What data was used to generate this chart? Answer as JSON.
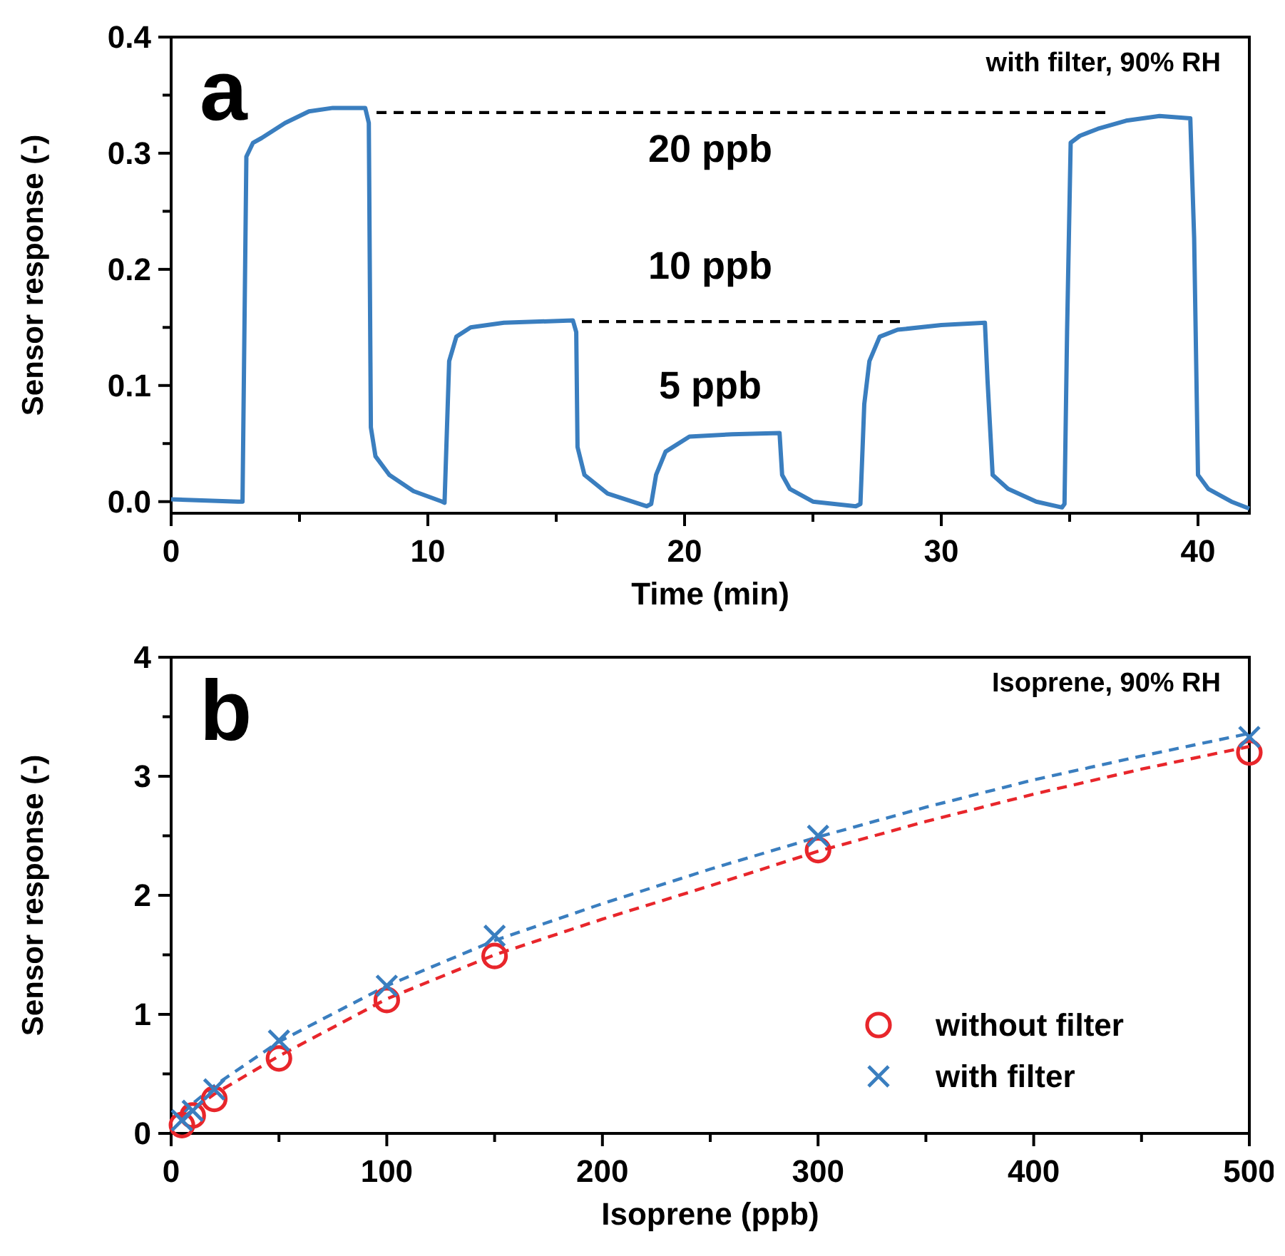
{
  "chart_data": [
    {
      "type": "line",
      "xlabel": "Time (min)",
      "ylabel": "Sensor response (-)",
      "xlim": [
        0,
        42
      ],
      "ylim": [
        -0.01,
        0.4
      ],
      "xticks": [
        0,
        {
          "value": 5,
          "label": null
        },
        10,
        {
          "value": 15,
          "label": null
        },
        20,
        {
          "value": 25,
          "label": null
        },
        30,
        {
          "value": 35,
          "label": null
        },
        40
      ],
      "yticks": [
        {
          "value": 0,
          "label": "0.0"
        },
        {
          "value": 0.05,
          "label": null
        },
        {
          "value": 0.1,
          "label": "0.1"
        },
        {
          "value": 0.15,
          "label": null
        },
        {
          "value": 0.2,
          "label": "0.2"
        },
        {
          "value": 0.25,
          "label": null
        },
        {
          "value": 0.3,
          "label": "0.3"
        },
        {
          "value": 0.35,
          "label": null
        },
        {
          "value": 0.4,
          "label": "0.4"
        }
      ],
      "annotations": [
        "a",
        "with filter, 90% RH",
        "20 ppb",
        "10 ppb",
        "5 ppb"
      ],
      "series": [
        {
          "color": "#3a7ebf",
          "line_style": "solid",
          "x": [
            0,
            2.6,
            2.78,
            2.93,
            3.19,
            3.52,
            4.44,
            5.37,
            6.3,
            7.56,
            7.7,
            7.78,
            7.96,
            8.5,
            9.44,
            10.56,
            10.65,
            10.83,
            11.11,
            11.67,
            12.96,
            15.65,
            15.78,
            15.83,
            16.1,
            17.0,
            18.52,
            18.7,
            18.89,
            19.26,
            20.19,
            21.85,
            23.7,
            23.8,
            24.1,
            25.0,
            26.67,
            26.85,
            27.0,
            27.2,
            27.6,
            28.3,
            30.0,
            31.7,
            31.8,
            32.0,
            32.6,
            33.7,
            34.7,
            34.8,
            34.9,
            35.04,
            35.4,
            36.1,
            37.2,
            38.5,
            39.7,
            39.85,
            40.0,
            40.4,
            41.3,
            42.0
          ],
          "values": [
            0.002,
            0.0,
            0.0,
            0.297,
            0.309,
            0.313,
            0.326,
            0.336,
            0.339,
            0.339,
            0.326,
            0.064,
            0.039,
            0.023,
            0.009,
            0.0,
            -0.001,
            0.121,
            0.142,
            0.15,
            0.154,
            0.156,
            0.146,
            0.047,
            0.023,
            0.007,
            -0.004,
            -0.002,
            0.023,
            0.043,
            0.056,
            0.058,
            0.059,
            0.023,
            0.011,
            0.0,
            -0.004,
            -0.002,
            0.084,
            0.121,
            0.142,
            0.148,
            0.152,
            0.154,
            0.105,
            0.023,
            0.011,
            0.0,
            -0.005,
            -0.002,
            0.146,
            0.309,
            0.315,
            0.321,
            0.328,
            0.332,
            0.33,
            0.227,
            0.023,
            0.011,
            0.0,
            -0.006
          ]
        },
        {
          "color": "#000000",
          "line_style": "dashed",
          "x": [
            8.0,
            36.5
          ],
          "values": [
            0.335,
            0.335
          ]
        },
        {
          "color": "#000000",
          "line_style": "dashed",
          "x": [
            16.0,
            28.4
          ],
          "values": [
            0.155,
            0.155
          ]
        }
      ]
    },
    {
      "type": "scatter",
      "xlabel": "Isoprene (ppb)",
      "ylabel": "Sensor response (-)",
      "xlim": [
        0,
        500
      ],
      "ylim": [
        0,
        4
      ],
      "xticks": [
        0,
        {
          "value": 50,
          "label": null
        },
        100,
        {
          "value": 150,
          "label": null
        },
        200,
        {
          "value": 250,
          "label": null
        },
        300,
        {
          "value": 350,
          "label": null
        },
        400,
        {
          "value": 450,
          "label": null
        },
        500
      ],
      "yticks": [
        0,
        {
          "value": 0.5,
          "label": null
        },
        1,
        {
          "value": 1.5,
          "label": null
        },
        2,
        {
          "value": 2.5,
          "label": null
        },
        3,
        {
          "value": 3.5,
          "label": null
        },
        4
      ],
      "legend": "bottom right",
      "annotations": [
        "b",
        "Isoprene, 90% RH"
      ],
      "series": [
        {
          "type": "line",
          "color": "#e8262b",
          "line_style": "dashed",
          "x": [
            5,
            10,
            20,
            50,
            100,
            150,
            200,
            250,
            300,
            350,
            400,
            450,
            500
          ],
          "values": [
            0.12,
            0.2,
            0.33,
            0.65,
            1.13,
            1.5,
            1.8,
            2.08,
            2.37,
            2.62,
            2.85,
            3.06,
            3.25
          ]
        },
        {
          "type": "line",
          "color": "#3a7ebf",
          "line_style": "dashed",
          "x": [
            5,
            10,
            20,
            50,
            100,
            150,
            200,
            250,
            300,
            350,
            400,
            450,
            500
          ],
          "values": [
            0.16,
            0.25,
            0.4,
            0.77,
            1.24,
            1.62,
            1.93,
            2.22,
            2.49,
            2.74,
            2.97,
            3.17,
            3.36
          ]
        },
        {
          "type": "scatter",
          "name": "without filter",
          "color": "#e8262b",
          "marker": "circle",
          "x": [
            5,
            10,
            20,
            50,
            100,
            150,
            300,
            500
          ],
          "values": [
            0.07,
            0.15,
            0.29,
            0.63,
            1.12,
            1.49,
            2.38,
            3.2
          ]
        },
        {
          "type": "scatter",
          "name": "with filter",
          "color": "#3a7ebf",
          "marker": "cross",
          "x": [
            5,
            10,
            20,
            50,
            100,
            150,
            300,
            500
          ],
          "values": [
            0.11,
            0.19,
            0.37,
            0.78,
            1.24,
            1.66,
            2.5,
            3.33
          ]
        }
      ]
    }
  ]
}
